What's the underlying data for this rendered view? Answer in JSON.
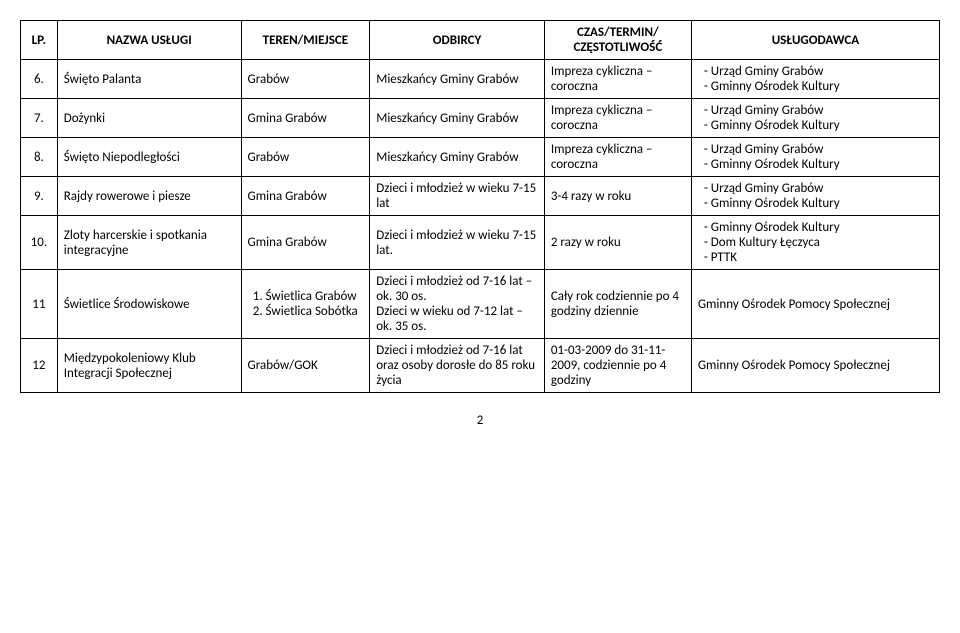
{
  "table": {
    "headers": [
      "LP.",
      "NAZWA USŁUGI",
      "TEREN/MIEJSCE",
      "ODBIRCY",
      "CZAS/TERMIN/ CZĘSTOTLIWOŚĆ",
      "USŁUGODAWCA"
    ],
    "rows": [
      {
        "lp": "6.",
        "nazwa": "Święto Palanta",
        "teren": "Grabów",
        "odbiorcy": "Mieszkańcy Gminy Grabów",
        "czas": "Impreza cykliczna – coroczna",
        "uslugodawca": [
          "Urząd Gminy Grabów",
          "Gminny Ośrodek Kultury"
        ]
      },
      {
        "lp": "7.",
        "nazwa": "Dożynki",
        "teren": "Gmina Grabów",
        "odbiorcy": "Mieszkańcy Gminy Grabów",
        "czas": "Impreza cykliczna – coroczna",
        "uslugodawca": [
          "Urząd Gminy Grabów",
          "Gminny Ośrodek Kultury"
        ]
      },
      {
        "lp": "8.",
        "nazwa": "Święto Niepodległości",
        "teren": "Grabów",
        "odbiorcy": "Mieszkańcy Gminy Grabów",
        "czas": "Impreza cykliczna – coroczna",
        "uslugodawca": [
          "Urząd Gminy Grabów",
          "Gminny Ośrodek Kultury"
        ]
      },
      {
        "lp": "9.",
        "nazwa": "Rajdy rowerowe i piesze",
        "teren": "Gmina Grabów",
        "odbiorcy": "Dzieci i młodzież w wieku 7-15 lat",
        "czas": "3-4 razy w roku",
        "uslugodawca": [
          "Urząd Gminy Grabów",
          "Gminny Ośrodek Kultury"
        ]
      },
      {
        "lp": "10.",
        "nazwa": "Zloty harcerskie i spotkania integracyjne",
        "teren": "Gmina Grabów",
        "odbiorcy": "Dzieci i młodzież w wieku 7-15 lat.",
        "czas": "2 razy w roku",
        "uslugodawca": [
          "Gminny Ośrodek Kultury",
          "Dom Kultury Łęczyca",
          "PTTK"
        ]
      },
      {
        "lp": "11",
        "nazwa": "Świetlice Środowiskowe",
        "teren_list": [
          "Świetlica Grabów",
          "Świetlica Sobótka"
        ],
        "odbiorcy": "Dzieci i młodzież od 7-16 lat –ok. 30 os.\nDzieci w wieku od 7-12 lat – ok. 35 os.",
        "czas": "Cały rok codziennie po 4 godziny dziennie",
        "uslugodawca_plain": "Gminny Ośrodek Pomocy Społecznej"
      },
      {
        "lp": "12",
        "nazwa": "Międzypokoleniowy Klub Integracji Społecznej",
        "teren": "Grabów/GOK",
        "odbiorcy": "Dzieci i młodzież od 7-16 lat oraz osoby dorosłe do 85 roku życia",
        "czas": "01-03-2009 do 31-11-2009, codziennie po 4 godziny",
        "uslugodawca_plain": "Gminny Ośrodek Pomocy Społecznej"
      }
    ]
  },
  "page_number": "2",
  "styling": {
    "font_family": "Calibri, Arial, sans-serif",
    "font_size_pt": 13,
    "border_color": "#000000",
    "background_color": "#ffffff",
    "text_color": "#000000"
  }
}
